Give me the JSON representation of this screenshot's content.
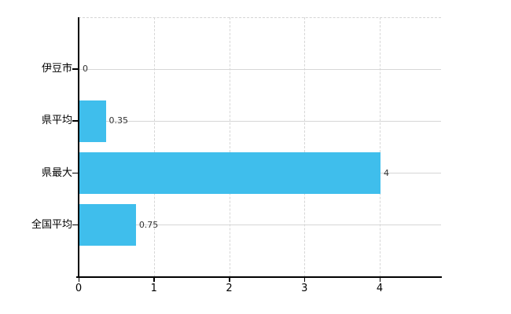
{
  "chart_data": {
    "type": "bar",
    "orientation": "horizontal",
    "title": "",
    "xlabel": "",
    "ylabel": "",
    "categories": [
      "伊豆市",
      "県平均",
      "県最大",
      "全国平均"
    ],
    "values": [
      0,
      0.35,
      4,
      0.75
    ],
    "value_labels": [
      "0",
      "0.35",
      "4",
      "0.75"
    ],
    "xticks": [
      0,
      1,
      2,
      3,
      4
    ],
    "xtick_labels": [
      "0",
      "1",
      "2",
      "3",
      "4"
    ],
    "xlim": [
      0,
      4.81
    ],
    "legend": "none",
    "grid": "vertical-dashed-at-ticks, horizontal-solid-at-category-centers, dashed-top-border",
    "colors": {
      "bar": "#3FBEEC",
      "gridline": "#d6d6d6",
      "axis": "#000000",
      "category_label": "#000000",
      "value_label": "#333333",
      "background": "#ffffff"
    }
  }
}
